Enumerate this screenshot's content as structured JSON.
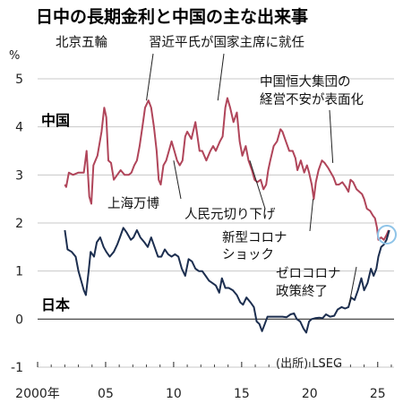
{
  "chart_data": {
    "type": "line",
    "title": "日中の長期金利と中国の主な出来事",
    "unit": "%",
    "ylim": [
      -1,
      5
    ],
    "yticks": [
      -1,
      0,
      1,
      2,
      3,
      4,
      5
    ],
    "xlim": [
      2000,
      2026.2
    ],
    "xticks": [
      {
        "value": 2000,
        "label": "2000年"
      },
      {
        "value": 2005,
        "label": "05"
      },
      {
        "value": 2010,
        "label": "10"
      },
      {
        "value": 2015,
        "label": "15"
      },
      {
        "value": 2020,
        "label": "20"
      },
      {
        "value": 2025,
        "label": "25"
      }
    ],
    "grid": true,
    "source": "(出所) LSEG",
    "series": [
      {
        "name": "中国",
        "color": "#b0455a",
        "points": [
          [
            2002.0,
            2.8
          ],
          [
            2002.1,
            2.75
          ],
          [
            2002.3,
            3.05
          ],
          [
            2002.6,
            3.0
          ],
          [
            2003.0,
            3.05
          ],
          [
            2003.4,
            3.05
          ],
          [
            2003.6,
            3.5
          ],
          [
            2003.8,
            2.55
          ],
          [
            2003.95,
            2.4
          ],
          [
            2004.1,
            3.2
          ],
          [
            2004.4,
            3.4
          ],
          [
            2004.7,
            3.9
          ],
          [
            2004.9,
            4.4
          ],
          [
            2005.05,
            4.2
          ],
          [
            2005.2,
            3.3
          ],
          [
            2005.4,
            3.25
          ],
          [
            2005.6,
            2.9
          ],
          [
            2005.85,
            3.0
          ],
          [
            2006.1,
            3.1
          ],
          [
            2006.4,
            3.0
          ],
          [
            2006.7,
            3.0
          ],
          [
            2006.9,
            3.05
          ],
          [
            2007.1,
            3.2
          ],
          [
            2007.3,
            3.3
          ],
          [
            2007.5,
            3.6
          ],
          [
            2007.7,
            4.0
          ],
          [
            2007.9,
            4.4
          ],
          [
            2008.15,
            4.55
          ],
          [
            2008.35,
            4.4
          ],
          [
            2008.55,
            4.0
          ],
          [
            2008.75,
            3.5
          ],
          [
            2008.9,
            2.9
          ],
          [
            2009.05,
            2.8
          ],
          [
            2009.25,
            3.2
          ],
          [
            2009.45,
            3.3
          ],
          [
            2009.65,
            3.5
          ],
          [
            2009.85,
            3.7
          ],
          [
            2010.05,
            3.5
          ],
          [
            2010.25,
            3.3
          ],
          [
            2010.45,
            3.2
          ],
          [
            2010.65,
            3.3
          ],
          [
            2010.85,
            3.8
          ],
          [
            2011.0,
            3.9
          ],
          [
            2011.3,
            3.75
          ],
          [
            2011.6,
            4.1
          ],
          [
            2011.9,
            3.5
          ],
          [
            2012.1,
            3.5
          ],
          [
            2012.4,
            3.3
          ],
          [
            2012.7,
            3.5
          ],
          [
            2012.9,
            3.6
          ],
          [
            2013.1,
            3.5
          ],
          [
            2013.4,
            3.7
          ],
          [
            2013.6,
            3.8
          ],
          [
            2013.8,
            4.4
          ],
          [
            2013.95,
            4.6
          ],
          [
            2014.15,
            4.4
          ],
          [
            2014.4,
            4.1
          ],
          [
            2014.65,
            4.3
          ],
          [
            2014.85,
            3.7
          ],
          [
            2015.05,
            3.4
          ],
          [
            2015.3,
            3.6
          ],
          [
            2015.5,
            3.3
          ],
          [
            2015.75,
            3.1
          ],
          [
            2015.95,
            2.9
          ],
          [
            2016.15,
            2.85
          ],
          [
            2016.4,
            2.9
          ],
          [
            2016.6,
            2.7
          ],
          [
            2016.8,
            2.8
          ],
          [
            2016.95,
            3.1
          ],
          [
            2017.1,
            3.3
          ],
          [
            2017.35,
            3.6
          ],
          [
            2017.6,
            3.7
          ],
          [
            2017.85,
            3.95
          ],
          [
            2018.0,
            3.9
          ],
          [
            2018.25,
            3.7
          ],
          [
            2018.5,
            3.5
          ],
          [
            2018.75,
            3.5
          ],
          [
            2018.95,
            3.35
          ],
          [
            2019.1,
            3.1
          ],
          [
            2019.35,
            3.3
          ],
          [
            2019.6,
            3.05
          ],
          [
            2019.8,
            3.2
          ],
          [
            2019.95,
            3.05
          ],
          [
            2020.15,
            2.8
          ],
          [
            2020.3,
            2.5
          ],
          [
            2020.45,
            2.85
          ],
          [
            2020.65,
            3.1
          ],
          [
            2020.9,
            3.3
          ],
          [
            2021.1,
            3.25
          ],
          [
            2021.35,
            3.15
          ],
          [
            2021.55,
            3.05
          ],
          [
            2021.75,
            2.95
          ],
          [
            2021.95,
            2.8
          ],
          [
            2022.15,
            2.8
          ],
          [
            2022.4,
            2.85
          ],
          [
            2022.65,
            2.75
          ],
          [
            2022.85,
            2.65
          ],
          [
            2023.0,
            2.9
          ],
          [
            2023.2,
            2.85
          ],
          [
            2023.45,
            2.7
          ],
          [
            2023.65,
            2.65
          ],
          [
            2023.85,
            2.6
          ],
          [
            2024.0,
            2.5
          ],
          [
            2024.2,
            2.3
          ],
          [
            2024.45,
            2.25
          ],
          [
            2024.65,
            2.15
          ],
          [
            2024.8,
            2.1
          ],
          [
            2024.95,
            1.9
          ],
          [
            2025.05,
            1.65
          ],
          [
            2025.25,
            1.7
          ],
          [
            2025.45,
            1.65
          ],
          [
            2025.65,
            1.75
          ],
          [
            2025.8,
            1.85
          ]
        ]
      },
      {
        "name": "日本",
        "color": "#1c2e4f",
        "points": [
          [
            2002.0,
            1.85
          ],
          [
            2002.2,
            1.45
          ],
          [
            2002.5,
            1.4
          ],
          [
            2002.8,
            1.3
          ],
          [
            2003.0,
            1.0
          ],
          [
            2003.2,
            0.8
          ],
          [
            2003.4,
            0.6
          ],
          [
            2003.55,
            0.5
          ],
          [
            2003.75,
            1.0
          ],
          [
            2003.9,
            1.4
          ],
          [
            2004.15,
            1.3
          ],
          [
            2004.35,
            1.6
          ],
          [
            2004.6,
            1.7
          ],
          [
            2004.85,
            1.5
          ],
          [
            2005.05,
            1.4
          ],
          [
            2005.3,
            1.3
          ],
          [
            2005.6,
            1.4
          ],
          [
            2005.85,
            1.55
          ],
          [
            2006.05,
            1.7
          ],
          [
            2006.3,
            1.9
          ],
          [
            2006.55,
            1.8
          ],
          [
            2006.85,
            1.65
          ],
          [
            2007.05,
            1.7
          ],
          [
            2007.3,
            1.85
          ],
          [
            2007.55,
            1.7
          ],
          [
            2007.85,
            1.6
          ],
          [
            2008.1,
            1.5
          ],
          [
            2008.35,
            1.7
          ],
          [
            2008.6,
            1.5
          ],
          [
            2008.85,
            1.3
          ],
          [
            2009.1,
            1.3
          ],
          [
            2009.35,
            1.45
          ],
          [
            2009.6,
            1.35
          ],
          [
            2009.85,
            1.3
          ],
          [
            2010.1,
            1.35
          ],
          [
            2010.35,
            1.3
          ],
          [
            2010.6,
            1.05
          ],
          [
            2010.85,
            0.9
          ],
          [
            2011.1,
            1.25
          ],
          [
            2011.35,
            1.2
          ],
          [
            2011.6,
            1.05
          ],
          [
            2011.85,
            1.0
          ],
          [
            2012.1,
            1.0
          ],
          [
            2012.35,
            0.9
          ],
          [
            2012.6,
            0.8
          ],
          [
            2012.85,
            0.75
          ],
          [
            2013.1,
            0.7
          ],
          [
            2013.35,
            0.55
          ],
          [
            2013.55,
            0.85
          ],
          [
            2013.8,
            0.65
          ],
          [
            2014.05,
            0.65
          ],
          [
            2014.35,
            0.6
          ],
          [
            2014.65,
            0.5
          ],
          [
            2014.9,
            0.35
          ],
          [
            2015.1,
            0.3
          ],
          [
            2015.35,
            0.45
          ],
          [
            2015.65,
            0.35
          ],
          [
            2015.9,
            0.25
          ],
          [
            2016.1,
            -0.05
          ],
          [
            2016.3,
            -0.1
          ],
          [
            2016.5,
            -0.25
          ],
          [
            2016.7,
            -0.1
          ],
          [
            2016.9,
            0.05
          ],
          [
            2017.1,
            0.05
          ],
          [
            2017.4,
            0.05
          ],
          [
            2017.7,
            0.05
          ],
          [
            2018.0,
            0.05
          ],
          [
            2018.3,
            0.04
          ],
          [
            2018.6,
            0.1
          ],
          [
            2018.85,
            0.12
          ],
          [
            2019.05,
            0.0
          ],
          [
            2019.3,
            -0.05
          ],
          [
            2019.55,
            -0.2
          ],
          [
            2019.75,
            -0.28
          ],
          [
            2019.95,
            -0.05
          ],
          [
            2020.15,
            0.0
          ],
          [
            2020.4,
            0.02
          ],
          [
            2020.7,
            0.03
          ],
          [
            2020.95,
            0.02
          ],
          [
            2021.2,
            0.1
          ],
          [
            2021.5,
            0.05
          ],
          [
            2021.8,
            0.07
          ],
          [
            2022.05,
            0.2
          ],
          [
            2022.35,
            0.25
          ],
          [
            2022.6,
            0.22
          ],
          [
            2022.85,
            0.25
          ],
          [
            2023.05,
            0.45
          ],
          [
            2023.3,
            0.4
          ],
          [
            2023.55,
            0.6
          ],
          [
            2023.8,
            0.85
          ],
          [
            2024.0,
            0.6
          ],
          [
            2024.25,
            0.75
          ],
          [
            2024.5,
            1.05
          ],
          [
            2024.7,
            0.9
          ],
          [
            2024.9,
            1.05
          ],
          [
            2025.05,
            1.3
          ],
          [
            2025.25,
            1.5
          ],
          [
            2025.45,
            1.55
          ],
          [
            2025.65,
            1.65
          ],
          [
            2025.85,
            1.85
          ]
        ]
      }
    ],
    "annotations": [
      {
        "id": "beijing-olympics",
        "lines": [
          "北京五輪"
        ],
        "x": 2008.0,
        "y": 4.55
      },
      {
        "id": "xi-president",
        "lines": [
          "習近平氏が国家主席に就任"
        ],
        "x": 2013.25,
        "y": 4.55
      },
      {
        "id": "evergrande",
        "lines": [
          "中国恒大集団の",
          "経営不安が表面化"
        ],
        "x": 2021.7,
        "y": 3.25
      },
      {
        "id": "shanghai-expo",
        "lines": [
          "上海万博"
        ],
        "x": 2010.0,
        "y": 3.3
      },
      {
        "id": "yuan-devaluation",
        "lines": [
          "人民元切り下げ"
        ],
        "x": 2015.6,
        "y": 3.3
      },
      {
        "id": "covid-shock",
        "lines": [
          "新型コロナ",
          "ショック"
        ],
        "x": 2020.25,
        "y": 2.5
      },
      {
        "id": "zero-covid-end",
        "lines": [
          "ゼロコロナ",
          "政策終了"
        ],
        "x": 2022.9,
        "y": 0.3
      }
    ]
  }
}
